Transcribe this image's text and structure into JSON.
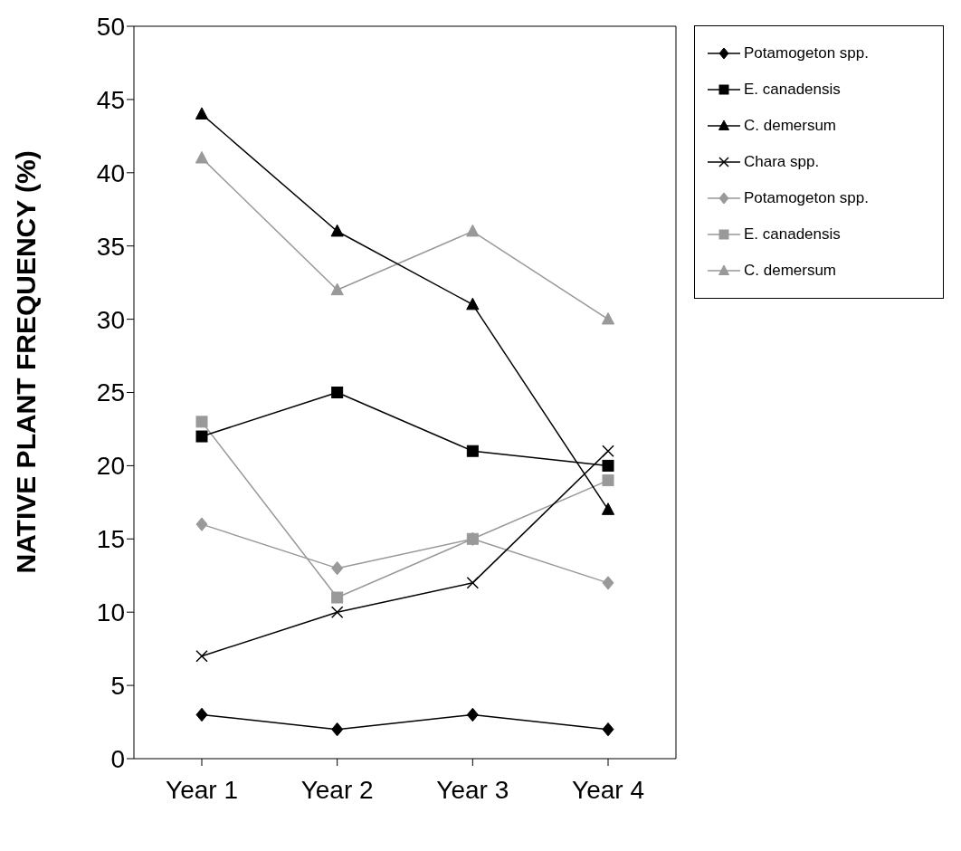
{
  "chart_data": {
    "type": "line",
    "ylabel": "NATIVE PLANT FREQUENCY (%)",
    "categories": [
      "Year 1",
      "Year 2",
      "Year 3",
      "Year 4"
    ],
    "series": [
      {
        "name": "Potamogeton spp.",
        "color": "#000000",
        "marker": "diamond",
        "values": [
          3,
          2,
          3,
          2
        ]
      },
      {
        "name": "E. canadensis",
        "color": "#000000",
        "marker": "square",
        "values": [
          22,
          25,
          21,
          20
        ]
      },
      {
        "name": "C. demersum",
        "color": "#000000",
        "marker": "triangle",
        "values": [
          44,
          36,
          31,
          17
        ]
      },
      {
        "name": "Chara spp.",
        "color": "#000000",
        "marker": "cross",
        "values": [
          7,
          10,
          12,
          21
        ]
      },
      {
        "name": "Potamogeton spp.",
        "color": "#999999",
        "marker": "diamond",
        "values": [
          16,
          13,
          15,
          12
        ]
      },
      {
        "name": "E. canadensis",
        "color": "#999999",
        "marker": "square",
        "values": [
          23,
          11,
          15,
          19
        ]
      },
      {
        "name": "C. demersum",
        "color": "#999999",
        "marker": "triangle",
        "values": [
          41,
          32,
          36,
          30
        ]
      }
    ],
    "ylim": [
      0,
      50
    ],
    "yticks": [
      0,
      5,
      10,
      15,
      20,
      25,
      30,
      35,
      40,
      45,
      50
    ],
    "grid": false,
    "legend": "top right",
    "line_style": "solid"
  }
}
